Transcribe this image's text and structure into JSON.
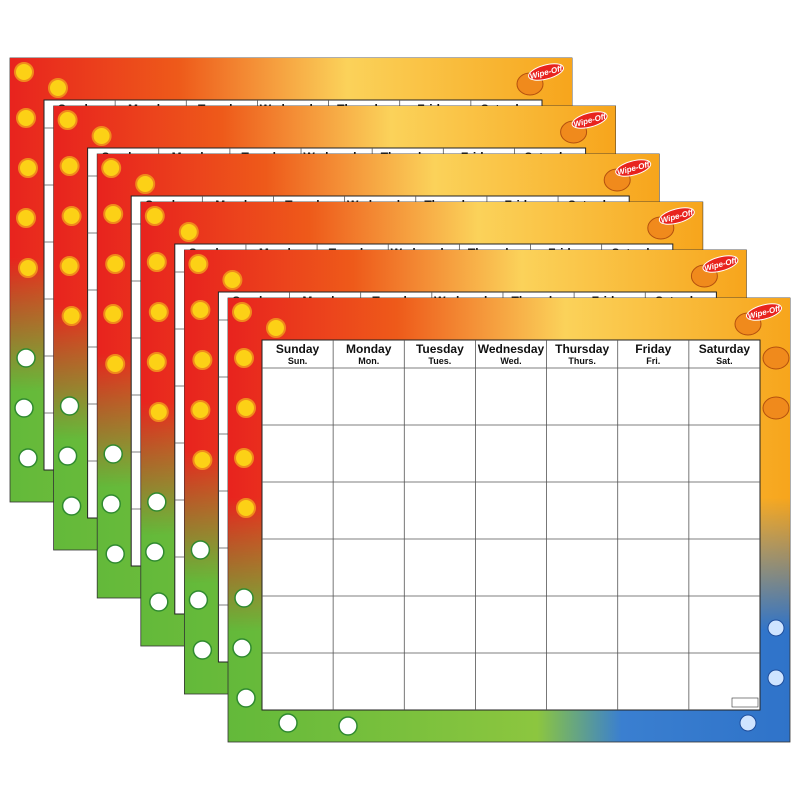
{
  "brand": "Wipe-Off",
  "days": [
    {
      "name": "Sunday",
      "abbr": "Sun."
    },
    {
      "name": "Monday",
      "abbr": "Mon."
    },
    {
      "name": "Tuesday",
      "abbr": "Tues."
    },
    {
      "name": "Wednesday",
      "abbr": "Wed."
    },
    {
      "name": "Thursday",
      "abbr": "Thurs."
    },
    {
      "name": "Friday",
      "abbr": "Fri."
    },
    {
      "name": "Saturday",
      "abbr": "Sat."
    }
  ]
}
